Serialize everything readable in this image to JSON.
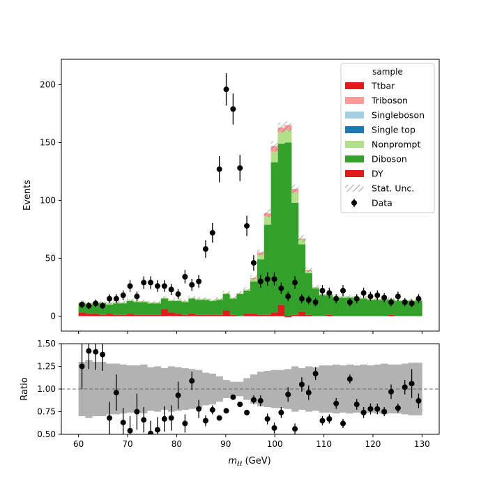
{
  "chart_data": {
    "type": "histogram-stack-with-ratio",
    "xlabel": "m_{ll} (GeV)",
    "xlabel_main": "m",
    "xlabel_sub": "ℓℓ",
    "xlabel_unit": " (GeV)",
    "xlim": [
      56.5,
      133.5
    ],
    "x_ticks": [
      60,
      70,
      80,
      90,
      100,
      110,
      120,
      130
    ],
    "bins": {
      "start": 60,
      "stop": 130,
      "n": 50
    },
    "top": {
      "ylabel": "Events",
      "ylim": [
        -13,
        222
      ],
      "y_ticks": [
        0,
        50,
        100,
        150,
        200
      ],
      "legend": {
        "title": "sample",
        "placement": "top-right",
        "entries": [
          "Ttbar",
          "Triboson",
          "Singleboson",
          "Single top",
          "Nonprompt",
          "Diboson",
          "DY",
          "Stat. Unc.",
          "Data"
        ]
      },
      "series": [
        {
          "name": "DY",
          "color": "#e31a1c",
          "values": [
            3,
            2,
            2,
            1,
            2,
            1,
            1,
            2,
            1,
            1,
            1,
            1,
            6,
            3,
            2,
            1,
            2,
            1,
            1,
            1,
            1,
            5,
            1,
            0,
            2,
            2,
            1,
            1,
            3,
            10,
            -1,
            1,
            4,
            1,
            0,
            0,
            1,
            0,
            0,
            0,
            0,
            0,
            0,
            0,
            0,
            1,
            0,
            0,
            0,
            0
          ]
        },
        {
          "name": "Diboson",
          "color": "#33a02c",
          "values": [
            8,
            8,
            9,
            10,
            8,
            10,
            10,
            11,
            11,
            11,
            10,
            10,
            9,
            10,
            11,
            11,
            13,
            13,
            13,
            12,
            13,
            14,
            14,
            19,
            20,
            28,
            48,
            78,
            130,
            139,
            150,
            97,
            58,
            36,
            24,
            18,
            17,
            16,
            16,
            16,
            15,
            15,
            14,
            14,
            14,
            13,
            13,
            13,
            13,
            13
          ]
        },
        {
          "name": "Nonprompt",
          "color": "#b2df8a",
          "values": [
            1,
            1,
            1,
            1,
            1,
            1,
            1,
            1,
            1,
            1,
            1,
            1,
            1,
            1,
            1,
            1,
            1,
            1,
            1,
            1,
            1,
            1,
            1,
            1,
            1,
            2,
            4,
            7,
            9,
            10,
            11,
            9,
            4,
            2,
            1,
            1,
            1,
            1,
            1,
            1,
            1,
            1,
            1,
            1,
            1,
            1,
            1,
            1,
            1,
            1
          ]
        },
        {
          "name": "Single top",
          "color": "#1f78b4",
          "values": [
            0,
            0,
            0,
            0,
            0,
            0,
            0,
            0,
            0,
            0,
            0,
            0,
            0,
            0,
            0,
            0,
            0,
            0,
            0,
            0,
            0,
            0,
            0,
            0,
            0,
            0,
            0,
            0,
            0,
            0,
            0,
            0,
            0,
            0,
            0,
            0,
            0,
            0,
            0,
            0,
            0,
            0,
            0,
            0,
            0,
            0,
            0,
            0,
            0,
            0
          ]
        },
        {
          "name": "Singleboson",
          "color": "#a6cee3",
          "values": [
            0,
            0,
            0,
            0,
            0,
            0,
            0,
            0,
            0,
            0,
            0,
            0,
            0,
            0,
            0,
            0,
            0,
            0,
            0,
            0,
            0,
            0,
            0,
            0,
            0,
            0,
            0,
            0,
            0,
            0,
            0,
            0,
            0,
            0,
            0,
            0,
            0,
            0,
            0,
            0,
            0,
            0,
            0,
            0,
            0,
            0,
            0,
            0,
            0,
            0
          ]
        },
        {
          "name": "Triboson",
          "color": "#fb9a99",
          "values": [
            0,
            0,
            0,
            0,
            0,
            0,
            0,
            0,
            0,
            0,
            0,
            0,
            0,
            0,
            0,
            0,
            0,
            0,
            0,
            0,
            0,
            0,
            0,
            0,
            0,
            1,
            2,
            3,
            5,
            4,
            4,
            3,
            1,
            1,
            0,
            0,
            0,
            0,
            0,
            0,
            0,
            0,
            0,
            0,
            0,
            0,
            0,
            0,
            0,
            0
          ]
        },
        {
          "name": "Ttbar",
          "color": "#e31a1c",
          "values": [
            0,
            0,
            0,
            0,
            0,
            0,
            0,
            0,
            0,
            0,
            0,
            0,
            0,
            0,
            0,
            0,
            0,
            0,
            0,
            0,
            0,
            0,
            0,
            0,
            0,
            0,
            0,
            0,
            0,
            0,
            0,
            0,
            0,
            0,
            0,
            0,
            0,
            0,
            0,
            0,
            0,
            0,
            0,
            0,
            0,
            0,
            0,
            0,
            0,
            0
          ]
        }
      ],
      "data": {
        "name": "Data",
        "x": [
          60.7,
          62.1,
          63.5,
          64.9,
          66.3,
          67.7,
          69.1,
          70.5,
          71.9,
          73.3,
          74.7,
          76.1,
          77.5,
          78.9,
          80.3,
          81.7,
          83.1,
          84.5,
          85.9,
          87.3,
          88.7,
          90.1,
          91.5,
          92.9,
          94.3,
          95.7,
          97.1,
          98.5,
          99.9,
          101.3,
          102.7,
          104.1,
          105.5,
          106.9,
          108.3,
          109.7,
          111.1,
          112.5,
          113.9,
          115.3,
          116.7,
          118.1,
          119.5,
          120.9,
          122.3,
          123.7,
          125.1,
          126.5,
          127.9,
          129.3
        ],
        "y": [
          10,
          9,
          11,
          9,
          15,
          15,
          18,
          26,
          17,
          29,
          29,
          26,
          26,
          23,
          19,
          34,
          27,
          30,
          58,
          72,
          127,
          196,
          179,
          128,
          78,
          46,
          30,
          32,
          32,
          24,
          17,
          29,
          15,
          14,
          12,
          22,
          20,
          15,
          22,
          12,
          15,
          20,
          17,
          18,
          16,
          12,
          17,
          12,
          11,
          15
        ],
        "yerr": [
          3.2,
          3,
          3.3,
          3,
          3.9,
          3.9,
          4.2,
          5.1,
          4.1,
          5.4,
          5.4,
          5.1,
          5.1,
          4.8,
          4.4,
          5.8,
          5.2,
          5.5,
          7.6,
          8.5,
          11.3,
          14,
          13.4,
          11.3,
          8.8,
          6.8,
          5.5,
          5.7,
          5.7,
          4.9,
          4.1,
          5.4,
          3.9,
          3.7,
          3.5,
          4.7,
          4.5,
          3.9,
          4.7,
          3.5,
          3.9,
          4.5,
          4.1,
          4.2,
          4,
          3.5,
          4.1,
          3.5,
          3.3,
          3.9
        ]
      }
    },
    "ratio": {
      "ylabel": "Ratio",
      "ylim": [
        0.5,
        1.5
      ],
      "y_ticks": [
        0.5,
        0.75,
        1.0,
        1.25,
        1.5
      ],
      "y_tick_labels": [
        "0.50",
        "0.75",
        "1.00",
        "1.25",
        "1.50"
      ],
      "reference_line": 1.0,
      "band_half_width": [
        0.3,
        0.32,
        0.3,
        0.3,
        0.28,
        0.28,
        0.27,
        0.26,
        0.26,
        0.27,
        0.24,
        0.25,
        0.23,
        0.25,
        0.24,
        0.23,
        0.22,
        0.21,
        0.18,
        0.17,
        0.14,
        0.1,
        0.08,
        0.08,
        0.12,
        0.16,
        0.19,
        0.2,
        0.21,
        0.21,
        0.22,
        0.25,
        0.23,
        0.25,
        0.24,
        0.26,
        0.26,
        0.27,
        0.26,
        0.27,
        0.26,
        0.27,
        0.26,
        0.27,
        0.28,
        0.27,
        0.27,
        0.28,
        0.29,
        0.29
      ],
      "x": [
        60.7,
        62.1,
        63.5,
        64.9,
        66.3,
        67.7,
        69.1,
        70.5,
        71.9,
        73.3,
        74.7,
        76.1,
        77.5,
        78.9,
        80.3,
        81.7,
        83.1,
        84.5,
        85.9,
        87.3,
        88.7,
        90.1,
        91.5,
        92.9,
        94.3,
        95.7,
        97.1,
        98.5,
        99.9,
        101.3,
        102.7,
        104.1,
        105.5,
        106.9,
        108.3,
        109.7,
        111.1,
        112.5,
        113.9,
        115.3,
        116.7,
        118.1,
        119.5,
        120.9,
        122.3,
        123.7,
        125.1,
        126.5,
        127.9,
        129.3
      ],
      "y": [
        1.25,
        1.42,
        1.41,
        1.38,
        0.68,
        0.96,
        0.63,
        0.54,
        0.75,
        0.66,
        0.51,
        0.55,
        0.67,
        0.68,
        0.93,
        0.62,
        1.09,
        0.78,
        0.65,
        0.77,
        0.68,
        0.76,
        0.91,
        0.83,
        0.74,
        0.88,
        0.87,
        0.67,
        0.57,
        0.74,
        0.94,
        0.56,
        1.05,
        0.96,
        1.17,
        0.65,
        0.67,
        0.84,
        0.62,
        1.11,
        0.83,
        0.74,
        0.78,
        0.78,
        0.75,
        0.97,
        0.79,
        1.02,
        1.06,
        0.87
      ],
      "yerr": [
        0.25,
        0.2,
        0.2,
        0.18,
        0.18,
        0.2,
        0.16,
        0.16,
        0.2,
        0.14,
        0.14,
        0.14,
        0.14,
        0.14,
        0.15,
        0.1,
        0.1,
        0.1,
        0.06,
        0.05,
        0.03,
        0.02,
        0.02,
        0.02,
        0.03,
        0.05,
        0.06,
        0.06,
        0.06,
        0.06,
        0.08,
        0.06,
        0.08,
        0.08,
        0.07,
        0.05,
        0.05,
        0.06,
        0.05,
        0.05,
        0.06,
        0.06,
        0.06,
        0.06,
        0.05,
        0.08,
        0.05,
        0.08,
        0.16,
        0.08
      ]
    }
  }
}
